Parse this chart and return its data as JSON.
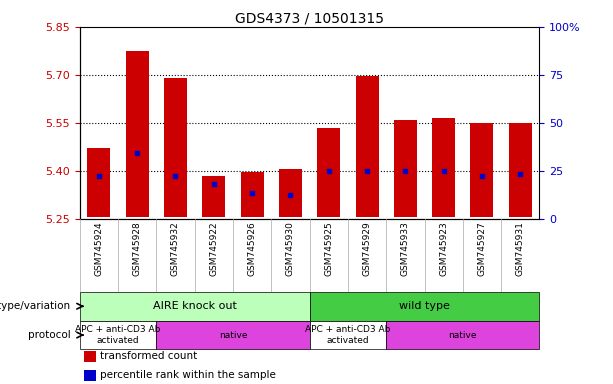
{
  "title": "GDS4373 / 10501315",
  "samples": [
    "GSM745924",
    "GSM745928",
    "GSM745932",
    "GSM745922",
    "GSM745926",
    "GSM745930",
    "GSM745925",
    "GSM745929",
    "GSM745933",
    "GSM745923",
    "GSM745927",
    "GSM745931"
  ],
  "bar_top": [
    5.47,
    5.775,
    5.69,
    5.385,
    5.395,
    5.405,
    5.535,
    5.695,
    5.56,
    5.565,
    5.55,
    5.55
  ],
  "bar_bottom": 5.255,
  "blue_dot_y": [
    5.385,
    5.455,
    5.385,
    5.36,
    5.33,
    5.325,
    5.4,
    5.4,
    5.4,
    5.4,
    5.385,
    5.39
  ],
  "ylim_left": [
    5.25,
    5.85
  ],
  "yticks_left": [
    5.25,
    5.4,
    5.55,
    5.7,
    5.85
  ],
  "yticks_right": [
    0,
    25,
    50,
    75,
    100
  ],
  "ylabel_left_color": "#cc0000",
  "ylabel_right_color": "#0000cc",
  "bar_color": "#cc0000",
  "dot_color": "#0000cc",
  "grid_yticks": [
    5.4,
    5.55,
    5.7
  ],
  "xlabel_rotation": 270,
  "genotype_groups": [
    {
      "text": "AIRE knock out",
      "start": 0,
      "end": 6,
      "color": "#bbffbb"
    },
    {
      "text": "wild type",
      "start": 6,
      "end": 12,
      "color": "#44cc44"
    }
  ],
  "protocol_groups": [
    {
      "text": "APC + anti-CD3 Ab\nactivated",
      "start": 0,
      "end": 2,
      "color": "#ffffff"
    },
    {
      "text": "native",
      "start": 2,
      "end": 6,
      "color": "#dd44dd"
    },
    {
      "text": "APC + anti-CD3 Ab\nactivated",
      "start": 6,
      "end": 8,
      "color": "#ffffff"
    },
    {
      "text": "native",
      "start": 8,
      "end": 12,
      "color": "#dd44dd"
    }
  ],
  "legend": [
    {
      "color": "#cc0000",
      "label": "transformed count"
    },
    {
      "color": "#0000cc",
      "label": "percentile rank within the sample"
    }
  ],
  "geno_label": "genotype/variation",
  "proto_label": "protocol"
}
